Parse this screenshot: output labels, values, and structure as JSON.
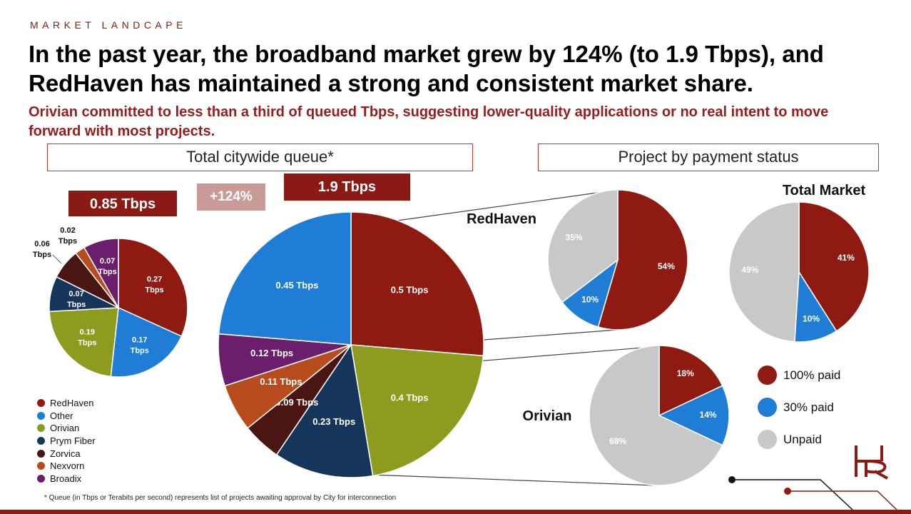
{
  "header": {
    "section_label": "MARKET LANDCAPE",
    "headline": "In the past year, the broadband market grew by 124% (to 1.9 Tbps), and RedHaven has maintained a strong and consistent market share.",
    "subhead": "Orivian committed to less than a third of queued Tbps, suggesting lower-quality applications or no real intent to move forward with most projects."
  },
  "boxes": {
    "queue_title": "Total citywide queue*",
    "payment_title": "Project by payment status"
  },
  "badges": {
    "past_total": "0.85 Tbps",
    "growth": "+124%",
    "current_total": "1.9 Tbps"
  },
  "legend": {
    "items": [
      {
        "label": "RedHaven",
        "color": "#8E1A12"
      },
      {
        "label": "Other",
        "color": "#1F7DD6"
      },
      {
        "label": "Orivian",
        "color": "#8D9B1F"
      },
      {
        "label": "Prym Fiber",
        "color": "#15355A"
      },
      {
        "label": "Zorvica",
        "color": "#4A1512"
      },
      {
        "label": "Nexvorn",
        "color": "#B84C1C"
      },
      {
        "label": "Broadix",
        "color": "#6B1E6B"
      }
    ]
  },
  "status_legend": {
    "items": [
      {
        "label": "100% paid",
        "color": "#8E1A12"
      },
      {
        "label": "30% paid",
        "color": "#1F7DD6"
      },
      {
        "label": "Unpaid",
        "color": "#C8C8C8"
      }
    ]
  },
  "footnote": "* Queue (in Tbps or Terabits per second) represents list of projects awaiting approval by City for interconnection",
  "chart_data": [
    {
      "type": "pie",
      "title": "0.85 Tbps",
      "labels": [
        "RedHaven",
        "Other",
        "Orivian",
        "Prym Fiber",
        "Zorvica",
        "Nexvorn",
        "Broadix"
      ],
      "values": [
        0.27,
        0.17,
        0.19,
        0.07,
        0.06,
        0.02,
        0.07
      ],
      "data_labels": [
        "0.27\nTbps",
        "0.17\nTbps",
        "0.19\nTbps",
        "0.07\nTbps",
        "0.06\nTbps",
        "0.02\nTbps",
        "0.07\nTbps"
      ],
      "colors": [
        "#8E1A12",
        "#1F7DD6",
        "#8D9B1F",
        "#15355A",
        "#4A1512",
        "#B84C1C",
        "#6B1E6B"
      ]
    },
    {
      "type": "pie",
      "title": "1.9 Tbps",
      "labels": [
        "RedHaven",
        "Orivian",
        "Prym Fiber",
        "Zorvica",
        "Nexvorn",
        "Broadix",
        "Other"
      ],
      "values": [
        0.5,
        0.4,
        0.23,
        0.09,
        0.11,
        0.12,
        0.45
      ],
      "data_labels": [
        "0.5 Tbps",
        "0.4 Tbps",
        "0.23 Tbps",
        "0.09 Tbps",
        "0.11 Tbps",
        "0.12 Tbps",
        "0.45 Tbps"
      ],
      "colors": [
        "#8E1A12",
        "#8D9B1F",
        "#15355A",
        "#4A1512",
        "#B84C1C",
        "#6B1E6B",
        "#1F7DD6"
      ]
    },
    {
      "type": "pie",
      "title": "RedHaven",
      "labels": [
        "100% paid",
        "30% paid",
        "Unpaid"
      ],
      "values": [
        54,
        10,
        35
      ],
      "data_labels": [
        "54%",
        "10%",
        "35%"
      ],
      "colors": [
        "#8E1A12",
        "#1F7DD6",
        "#C8C8C8"
      ]
    },
    {
      "type": "pie",
      "title": "Total Market",
      "labels": [
        "100% paid",
        "30% paid",
        "Unpaid"
      ],
      "values": [
        41,
        10,
        49
      ],
      "data_labels": [
        "41%",
        "10%",
        "49%"
      ],
      "colors": [
        "#8E1A12",
        "#1F7DD6",
        "#C8C8C8"
      ]
    },
    {
      "type": "pie",
      "title": "Orivian",
      "labels": [
        "100% paid",
        "30% paid",
        "Unpaid"
      ],
      "values": [
        18,
        14,
        68
      ],
      "data_labels": [
        "18%",
        "14%",
        "68%"
      ],
      "colors": [
        "#8E1A12",
        "#1F7DD6",
        "#C8C8C8"
      ]
    }
  ]
}
